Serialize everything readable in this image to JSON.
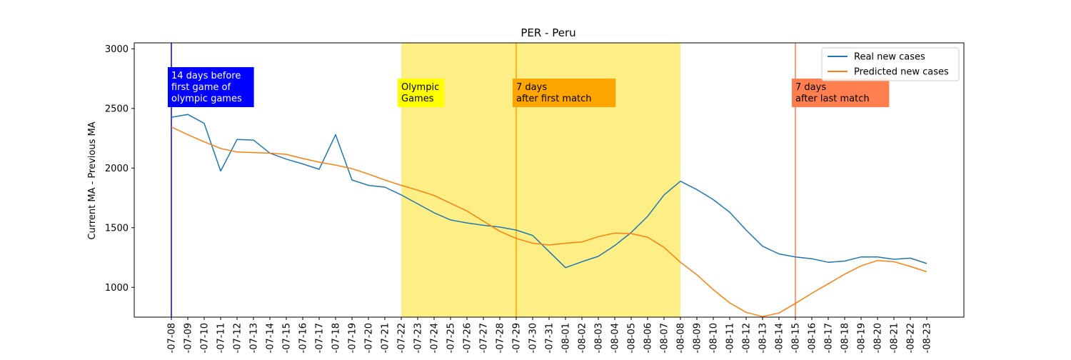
{
  "chart_data": {
    "type": "line",
    "title": "PER - Peru",
    "xlabel": "",
    "ylabel": "Current MA - Previous MA",
    "ylim": [
      750,
      3050
    ],
    "yticks": [
      1000,
      1500,
      2000,
      2500,
      3000
    ],
    "x": [
      "2021-07-08",
      "2021-07-09",
      "2021-07-10",
      "2021-07-11",
      "2021-07-12",
      "2021-07-13",
      "2021-07-14",
      "2021-07-15",
      "2021-07-16",
      "2021-07-17",
      "2021-07-18",
      "2021-07-19",
      "2021-07-20",
      "2021-07-21",
      "2021-07-22",
      "2021-07-23",
      "2021-07-24",
      "2021-07-25",
      "2021-07-26",
      "2021-07-27",
      "2021-07-28",
      "2021-07-29",
      "2021-07-30",
      "2021-07-31",
      "2021-08-01",
      "2021-08-02",
      "2021-08-03",
      "2021-08-04",
      "2021-08-05",
      "2021-08-06",
      "2021-08-07",
      "2021-08-08",
      "2021-08-09",
      "2021-08-10",
      "2021-08-11",
      "2021-08-12",
      "2021-08-13",
      "2021-08-14",
      "2021-08-15",
      "2021-08-16",
      "2021-08-17",
      "2021-08-18",
      "2021-08-19",
      "2021-08-20",
      "2021-08-21",
      "2021-08-22",
      "2021-08-23"
    ],
    "tick_labels": [
      "-07-08",
      "-07-09",
      "-07-10",
      "-07-11",
      "-07-12",
      "-07-13",
      "-07-14",
      "-07-15",
      "-07-16",
      "-07-17",
      "-07-18",
      "-07-19",
      "-07-20",
      "-07-21",
      "-07-22",
      "-07-23",
      "-07-24",
      "-07-25",
      "-07-26",
      "-07-27",
      "-07-28",
      "-07-29",
      "-07-30",
      "-07-31",
      "-08-01",
      "-08-02",
      "-08-03",
      "-08-04",
      "-08-05",
      "-08-06",
      "-08-07",
      "-08-08",
      "-08-09",
      "-08-10",
      "-08-11",
      "-08-12",
      "-08-13",
      "-08-14",
      "-08-15",
      "-08-16",
      "-08-17",
      "-08-18",
      "-08-19",
      "-08-20",
      "-08-21",
      "-08-22",
      "-08-23"
    ],
    "series": [
      {
        "name": "Real new cases",
        "color": "#1f77b4",
        "values": [
          2425,
          2450,
          2375,
          1975,
          2240,
          2235,
          2125,
          2075,
          2035,
          1990,
          2280,
          1900,
          1855,
          1840,
          1775,
          1700,
          1625,
          1565,
          1540,
          1520,
          1505,
          1480,
          1435,
          1300,
          1165,
          1215,
          1260,
          1350,
          1460,
          1595,
          1775,
          1890,
          1820,
          1735,
          1630,
          1480,
          1345,
          1280,
          1255,
          1240,
          1210,
          1220,
          1255,
          1255,
          1235,
          1245,
          1200
        ]
      },
      {
        "name": "Predicted new cases",
        "color": "#ff7f0e",
        "values": [
          2345,
          2280,
          2220,
          2165,
          2135,
          2130,
          2125,
          2115,
          2080,
          2050,
          2025,
          1995,
          1950,
          1900,
          1855,
          1815,
          1770,
          1705,
          1640,
          1555,
          1470,
          1410,
          1370,
          1355,
          1370,
          1380,
          1425,
          1455,
          1450,
          1420,
          1335,
          1210,
          1105,
          980,
          870,
          790,
          755,
          785,
          865,
          950,
          1030,
          1110,
          1180,
          1225,
          1215,
          1175,
          1130
        ]
      }
    ],
    "shaded_region": {
      "label": "Olympic Games",
      "x_start": "2021-07-22",
      "x_end": "2021-08-08",
      "color": "#fdef86"
    },
    "vlines": [
      {
        "x": "2021-07-08",
        "color": "#0000ff",
        "label": "14 days before first game of olympic games",
        "lines": [
          "14 days before",
          "first game of",
          "olympic games"
        ],
        "box_color": "#0000ff",
        "text_color": "#ffffff"
      },
      {
        "x": "2021-07-29",
        "color": "#ffa500",
        "label": "7 days after first match",
        "lines": [
          "7 days",
          "after first match"
        ],
        "box_color": "#ffa500",
        "text_color": "#000000"
      },
      {
        "x": "2021-08-15",
        "color": "#ff7f50",
        "label": "7 days after last match",
        "lines": [
          "7 days",
          "after last match"
        ],
        "box_color": "#ff7f50",
        "text_color": "#000000"
      }
    ],
    "olympic_label_lines": [
      "Olympic",
      "Games"
    ],
    "olympic_box_color": "#ffff00",
    "grid": false,
    "legend_position": "top-right"
  }
}
